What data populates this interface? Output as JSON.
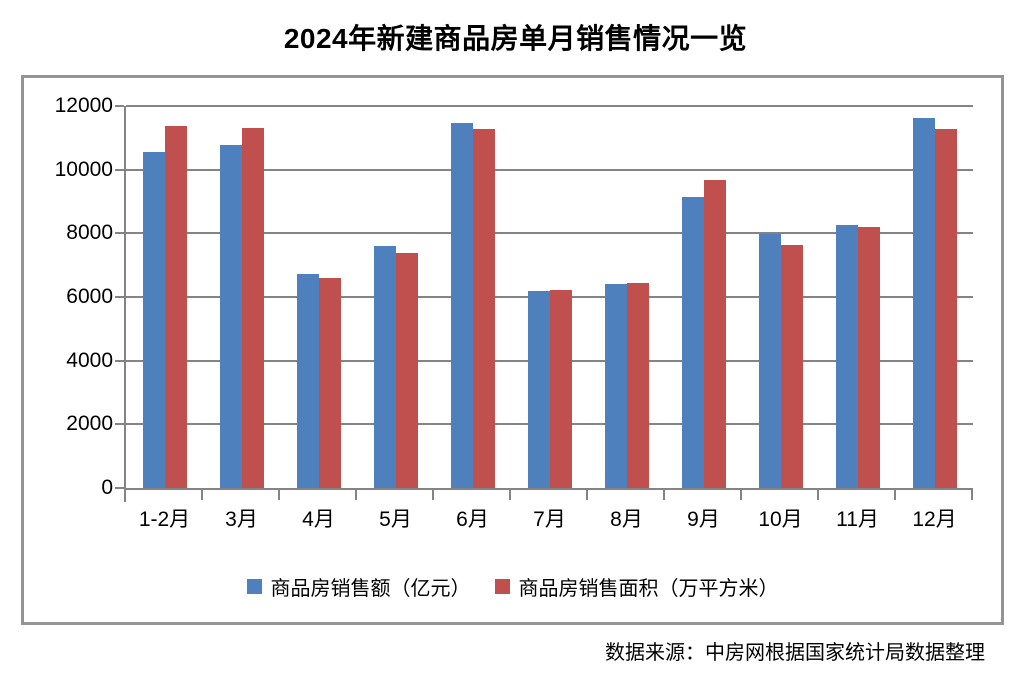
{
  "title": "2024年新建商品房单月销售情况一览",
  "source": "数据来源：中房网根据国家统计局数据整理",
  "chart_data": {
    "type": "bar",
    "title": "2024年新建商品房单月销售情况一览",
    "categories": [
      "1-2月",
      "3月",
      "4月",
      "5月",
      "6月",
      "7月",
      "8月",
      "9月",
      "10月",
      "11月",
      "12月"
    ],
    "series": [
      {
        "name": "商品房销售额（亿元）",
        "color": "#4D80BC",
        "values": [
          10566,
          10789,
          6712,
          7598,
          11468,
          6197,
          6393,
          9157,
          7975,
          8270,
          11625
        ]
      },
      {
        "name": "商品房销售面积（万平方米）",
        "color": "#C0504D",
        "values": [
          11369,
          11299,
          6584,
          7390,
          11274,
          6233,
          6453,
          9682,
          7646,
          8188,
          11267
        ]
      }
    ],
    "xlabel": "",
    "ylabel": "",
    "ylim": [
      0,
      12000
    ],
    "yticks": [
      0,
      2000,
      4000,
      6000,
      8000,
      10000,
      12000
    ],
    "grid": true,
    "legend_position": "bottom",
    "colors": {
      "gridline": "#848484",
      "axis": "#848484",
      "box_border": "#949494",
      "text": "#000000",
      "background": "#FFFFFF"
    }
  }
}
